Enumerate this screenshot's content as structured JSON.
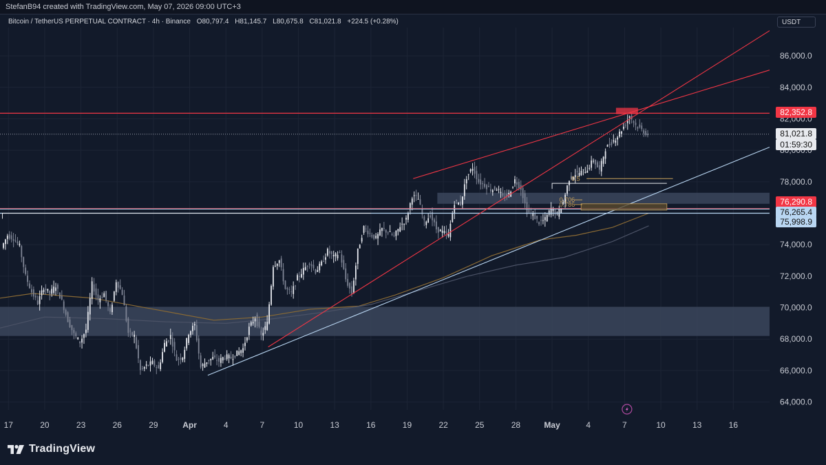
{
  "header": {
    "credit": "StefanB94 created with TradingView.com, May 07, 2026 09:00 UTC+3"
  },
  "legend": {
    "symbol": "Bitcoin / TetherUS PERPETUAL CONTRACT · 4h · Binance",
    "open": "O80,797.4",
    "high": "H81,145.7",
    "low": "L80,675.8",
    "close": "C81,021.8",
    "change": "+224.5 (+0.28%)"
  },
  "currency": "USDT",
  "brand": "TradingView",
  "colors": {
    "up_candle": "#e6e8ee",
    "down_candle": "#7e8494",
    "resistance": "#f23645",
    "support_line": "#b9d6f2",
    "zone": "#3b465c",
    "ma_orange": "#8a6a34",
    "ma_gray": "#4b5266",
    "fib_gold": "#c9a15a"
  },
  "price_tags": [
    {
      "text": "82,352.8",
      "bg": "#f23645",
      "fg": "#ffffff"
    },
    {
      "text": "81,021.8",
      "bg": "#e8eaef",
      "fg": "#111111"
    },
    {
      "text": "01:59:30",
      "bg": "#e8eaef",
      "fg": "#111111"
    },
    {
      "text": "76,290.8",
      "bg": "#f23645",
      "fg": "#ffffff"
    },
    {
      "text": "76,265.4",
      "bg": "#b9d6f2",
      "fg": "#111111"
    },
    {
      "text": "75,998.9",
      "bg": "#b9d6f2",
      "fg": "#111111"
    }
  ],
  "chart_data": {
    "type": "candlestick",
    "title": "Bitcoin / TetherUS PERPETUAL CONTRACT · 4h · Binance",
    "y_axis": {
      "ticks": [
        "86,000.0",
        "84,000.0",
        "82,000.0",
        "80,000.0",
        "78,000.0",
        "76,000.0",
        "74,000.0",
        "72,000.0",
        "70,000.0",
        "68,000.0",
        "66,000.0",
        "64,000.0"
      ],
      "tick_values": [
        86000,
        84000,
        82000,
        80000,
        78000,
        76000,
        74000,
        72000,
        70000,
        68000,
        66000,
        64000
      ],
      "range": [
        63500,
        87800
      ]
    },
    "x_axis": {
      "ticks": [
        "17",
        "20",
        "23",
        "26",
        "29",
        "Apr",
        "4",
        "7",
        "10",
        "13",
        "16",
        "19",
        "22",
        "25",
        "28",
        "May",
        "4",
        "7",
        "10",
        "13",
        "16"
      ],
      "tick_days": [
        17,
        20,
        23,
        26,
        29,
        32,
        35,
        38,
        41,
        44,
        47,
        50,
        53,
        56,
        59,
        62,
        65,
        68,
        71,
        74,
        77
      ],
      "bold": [
        "Apr",
        "May"
      ],
      "day_range": [
        16.3,
        80.0
      ],
      "note": "x values are days counted from March 1, 2026 (Apr 1 = day 32, May 1 = day 62)"
    },
    "close_path": [
      [
        16.5,
        73.8
      ],
      [
        17.0,
        74.6
      ],
      [
        17.5,
        74.4
      ],
      [
        18.0,
        73.9
      ],
      [
        18.5,
        72.0
      ],
      [
        19.0,
        71.0
      ],
      [
        19.5,
        70.3
      ],
      [
        20.0,
        71.3
      ],
      [
        20.5,
        70.9
      ],
      [
        21.0,
        71.4
      ],
      [
        21.5,
        70.4
      ],
      [
        22.0,
        69.2
      ],
      [
        22.5,
        68.3
      ],
      [
        23.0,
        67.8
      ],
      [
        23.5,
        68.6
      ],
      [
        24.0,
        71.5
      ],
      [
        24.5,
        70.5
      ],
      [
        25.0,
        70.9
      ],
      [
        25.5,
        69.6
      ],
      [
        26.0,
        71.7
      ],
      [
        26.5,
        70.9
      ],
      [
        27.0,
        68.4
      ],
      [
        27.5,
        68.2
      ],
      [
        28.0,
        66.0
      ],
      [
        28.5,
        66.3
      ],
      [
        29.0,
        66.5
      ],
      [
        29.5,
        66.1
      ],
      [
        30.0,
        67.7
      ],
      [
        30.5,
        68.2
      ],
      [
        31.0,
        66.7
      ],
      [
        31.5,
        66.9
      ],
      [
        32.0,
        68.4
      ],
      [
        32.5,
        68.9
      ],
      [
        33.0,
        66.2
      ],
      [
        33.5,
        66.6
      ],
      [
        34.0,
        66.8
      ],
      [
        34.5,
        66.6
      ],
      [
        35.0,
        66.9
      ],
      [
        35.5,
        66.8
      ],
      [
        36.0,
        67.1
      ],
      [
        36.5,
        67.4
      ],
      [
        37.0,
        68.7
      ],
      [
        37.5,
        69.4
      ],
      [
        38.0,
        68.2
      ],
      [
        38.5,
        69.0
      ],
      [
        39.0,
        72.7
      ],
      [
        39.5,
        73.0
      ],
      [
        40.0,
        71.2
      ],
      [
        40.5,
        70.9
      ],
      [
        41.0,
        71.9
      ],
      [
        41.5,
        72.4
      ],
      [
        42.0,
        72.9
      ],
      [
        42.5,
        72.3
      ],
      [
        43.0,
        72.8
      ],
      [
        43.5,
        73.6
      ],
      [
        44.0,
        73.2
      ],
      [
        44.5,
        73.5
      ],
      [
        45.0,
        71.8
      ],
      [
        45.5,
        70.9
      ],
      [
        46.0,
        73.6
      ],
      [
        46.5,
        75.1
      ],
      [
        47.0,
        74.7
      ],
      [
        47.5,
        74.4
      ],
      [
        48.0,
        75.0
      ],
      [
        48.5,
        74.8
      ],
      [
        49.0,
        74.5
      ],
      [
        49.5,
        75.2
      ],
      [
        50.0,
        75.6
      ],
      [
        50.5,
        77.1
      ],
      [
        51.0,
        76.9
      ],
      [
        51.5,
        75.4
      ],
      [
        52.0,
        75.9
      ],
      [
        52.5,
        75.0
      ],
      [
        53.0,
        74.8
      ],
      [
        53.5,
        74.6
      ],
      [
        54.0,
        76.7
      ],
      [
        54.5,
        76.6
      ],
      [
        55.0,
        78.3
      ],
      [
        55.5,
        78.9
      ],
      [
        56.0,
        78.0
      ],
      [
        56.5,
        77.8
      ],
      [
        57.0,
        77.5
      ],
      [
        57.5,
        77.6
      ],
      [
        58.0,
        77.0
      ],
      [
        58.5,
        77.2
      ],
      [
        59.0,
        78.1
      ],
      [
        59.5,
        77.6
      ],
      [
        60.0,
        76.1
      ],
      [
        60.5,
        75.9
      ],
      [
        61.0,
        75.4
      ],
      [
        61.5,
        75.6
      ],
      [
        62.0,
        76.3
      ],
      [
        62.5,
        75.9
      ],
      [
        63.0,
        76.7
      ],
      [
        63.5,
        78.2
      ],
      [
        64.0,
        78.5
      ],
      [
        64.5,
        78.6
      ],
      [
        65.0,
        78.8
      ],
      [
        65.5,
        79.4
      ],
      [
        66.0,
        78.7
      ],
      [
        66.5,
        80.1
      ],
      [
        67.0,
        80.5
      ],
      [
        67.5,
        80.9
      ],
      [
        68.0,
        81.5
      ],
      [
        68.5,
        82.2
      ],
      [
        69.0,
        81.6
      ],
      [
        69.5,
        81.3
      ],
      [
        70.0,
        81.0
      ]
    ],
    "horizontal_levels": [
      {
        "price": 82352.8,
        "color": "#f23645",
        "style": "solid"
      },
      {
        "price": 81021.8,
        "color": "#9aa0ad",
        "style": "dotted"
      },
      {
        "price": 76290.8,
        "color": "#f23645",
        "style": "solid"
      },
      {
        "price": 76265.4,
        "color": "#b9d6f2",
        "style": "solid"
      },
      {
        "price": 75998.9,
        "color": "#b9d6f2",
        "style": "solid"
      }
    ],
    "zones": [
      {
        "from": 68200,
        "to": 70050,
        "day_start": 16.3,
        "day_end": 80.0
      },
      {
        "from": 76600,
        "to": 77300,
        "day_start": 52.5,
        "day_end": 80.0
      }
    ],
    "trendlines": [
      {
        "color": "#b9d6f2",
        "points": [
          [
            33.5,
            65.7
          ],
          [
            80.0,
            80.2
          ]
        ]
      },
      {
        "color": "#f23645",
        "points": [
          [
            38.5,
            67.5
          ],
          [
            80.0,
            87.6
          ]
        ]
      },
      {
        "color": "#f23645",
        "points": [
          [
            50.5,
            78.2
          ],
          [
            80.0,
            85.1
          ]
        ]
      }
    ],
    "fib_labels": [
      {
        "text": "0.5",
        "day": 63.6,
        "price": 78.2,
        "line_end_day": 72.0
      },
      {
        "text": "0.706",
        "day": 62.6,
        "price": 76.85,
        "line_end_day": 64.5
      },
      {
        "text": "0.786",
        "day": 62.6,
        "price": 76.55,
        "line_end_day": 64.5
      }
    ],
    "fib_box": {
      "day_start": 64.4,
      "day_end": 71.5,
      "from": 76.2,
      "to": 76.6
    },
    "bracket_lines": [
      {
        "points": [
          [
            16.5,
            76.0
          ],
          [
            47.0,
            76.0
          ]
        ]
      },
      {
        "points": [
          [
            62.0,
            77.9
          ],
          [
            71.5,
            77.9
          ]
        ]
      }
    ],
    "moving_averages": [
      {
        "color": "#8a6a34",
        "points": [
          [
            16.3,
            70.6
          ],
          [
            19,
            70.9
          ],
          [
            24,
            70.6
          ],
          [
            29,
            69.9
          ],
          [
            34,
            69.2
          ],
          [
            38,
            69.4
          ],
          [
            42,
            69.9
          ],
          [
            46,
            70.1
          ],
          [
            49,
            70.8
          ],
          [
            53,
            71.9
          ],
          [
            57,
            73.3
          ],
          [
            61,
            74.3
          ],
          [
            64,
            74.6
          ],
          [
            67,
            75.1
          ],
          [
            70,
            76.0
          ]
        ]
      },
      {
        "color": "#4b5266",
        "points": [
          [
            16.3,
            68.7
          ],
          [
            20,
            69.4
          ],
          [
            25,
            69.3
          ],
          [
            30,
            69.1
          ],
          [
            35,
            69.0
          ],
          [
            39,
            69.3
          ],
          [
            43,
            69.7
          ],
          [
            47,
            70.2
          ],
          [
            51,
            71.1
          ],
          [
            55,
            72.0
          ],
          [
            59,
            72.7
          ],
          [
            63,
            73.2
          ],
          [
            67,
            74.2
          ],
          [
            70,
            75.2
          ]
        ]
      }
    ]
  }
}
